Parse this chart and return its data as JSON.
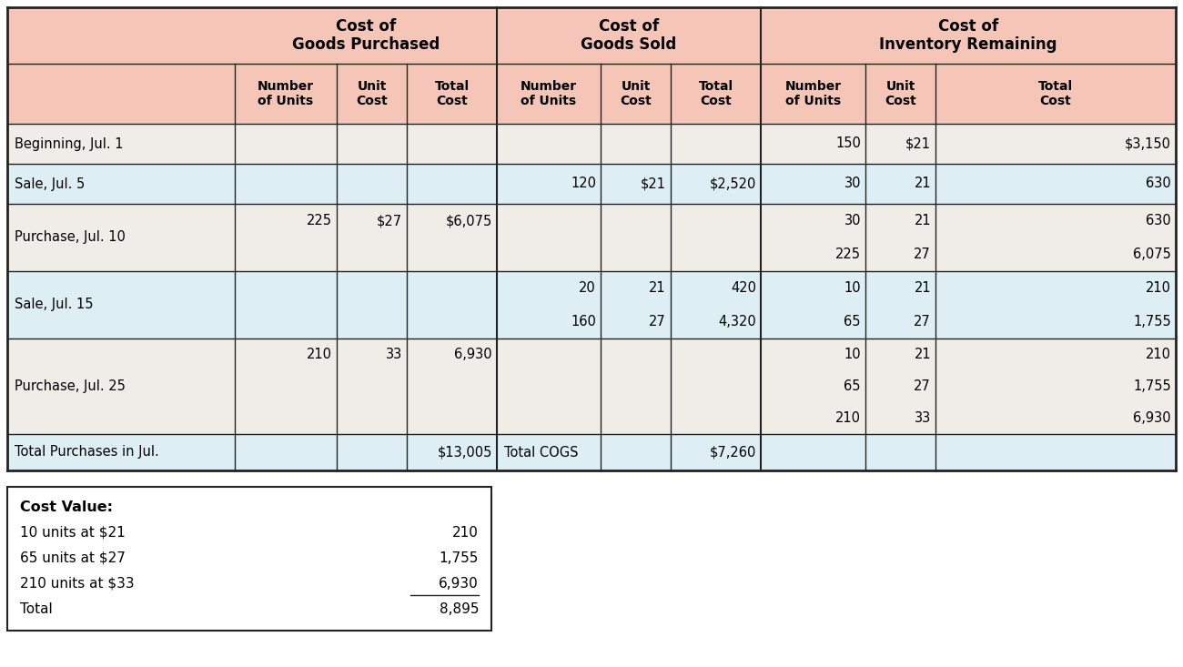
{
  "header_bg": "#f5c6b8",
  "white_row_bg": "#f0ede8",
  "light_row_bg": "#ddeef5",
  "border_color": "#222222",
  "col_headers_main": [
    "Cost of\nGoods Purchased",
    "Cost of\nGoods Sold",
    "Cost of\nInventory Remaining"
  ],
  "col_headers_sub": [
    "Number\nof Units",
    "Unit\nCost",
    "Total\nCost",
    "Number\nof Units",
    "Unit\nCost",
    "Total\nCost",
    "Number\nof Units",
    "Unit\nCost",
    "Total\nCost"
  ],
  "rows": [
    {
      "label": "Beginning, Jul. 1",
      "bg": "#f0ede8",
      "cells": [
        [
          "",
          "",
          "",
          "",
          "",
          "",
          "150",
          "$21",
          "$3,150"
        ]
      ]
    },
    {
      "label": "Sale, Jul. 5",
      "bg": "#ddeef5",
      "cells": [
        [
          "",
          "",
          "",
          "120",
          "$21",
          "$2,520",
          "30",
          "21",
          "630"
        ]
      ]
    },
    {
      "label": "Purchase, Jul. 10",
      "bg": "#f0ede8",
      "cells": [
        [
          "225",
          "$27",
          "$6,075",
          "",
          "",
          "",
          "30",
          "21",
          "630"
        ],
        [
          "",
          "",
          "",
          "",
          "",
          "",
          "225",
          "27",
          "6,075"
        ]
      ]
    },
    {
      "label": "Sale, Jul. 15",
      "bg": "#ddeef5",
      "cells": [
        [
          "",
          "",
          "",
          "20",
          "21",
          "420",
          "10",
          "21",
          "210"
        ],
        [
          "",
          "",
          "",
          "160",
          "27",
          "4,320",
          "65",
          "27",
          "1,755"
        ]
      ]
    },
    {
      "label": "Purchase, Jul. 25",
      "bg": "#f0ede8",
      "cells": [
        [
          "210",
          "33",
          "6,930",
          "",
          "",
          "",
          "10",
          "21",
          "210"
        ],
        [
          "",
          "",
          "",
          "",
          "",
          "",
          "65",
          "27",
          "1,755"
        ],
        [
          "",
          "",
          "",
          "",
          "",
          "",
          "210",
          "33",
          "6,930"
        ]
      ]
    },
    {
      "label": "Total Purchases in Jul.",
      "bg": "#ddeef5",
      "cells": [
        [
          "",
          "",
          "$13,005",
          "Total COGS",
          "",
          "$7,260",
          "",
          "",
          ""
        ]
      ],
      "is_total": true
    }
  ],
  "summary_box": {
    "title": "Cost Value:",
    "lines": [
      [
        "10 units at $21",
        "210"
      ],
      [
        "65 units at $27",
        "1,755"
      ],
      [
        "210 units at $33",
        "6,930"
      ],
      [
        "Total",
        "8,895"
      ]
    ]
  }
}
